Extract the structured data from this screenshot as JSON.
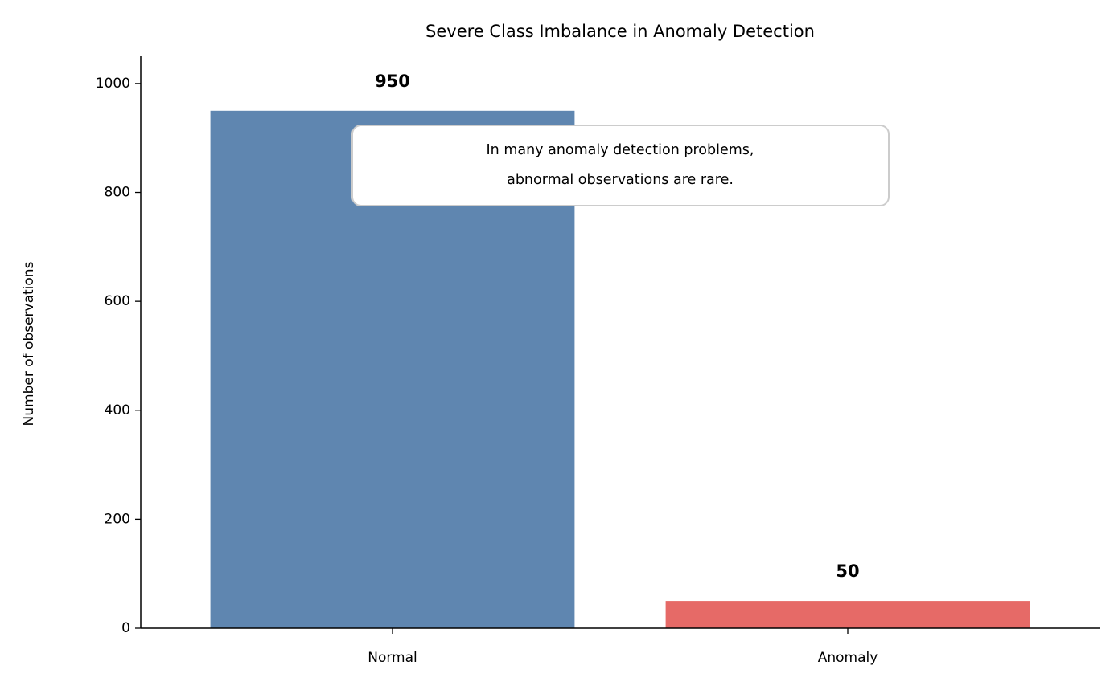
{
  "chart_data": {
    "type": "bar",
    "title": "Severe Class Imbalance in Anomaly Detection",
    "y_label": "Number of observations",
    "categories": [
      "Normal",
      "Anomaly"
    ],
    "values": [
      950,
      50
    ],
    "colors": [
      "#5f86b0",
      "#e66a67"
    ],
    "ylim": [
      0,
      1050
    ],
    "yticks": [
      0,
      200,
      400,
      600,
      800,
      1000
    ],
    "grid": false,
    "annotation": [
      "In many anomaly detection problems,",
      "abnormal observations are rare."
    ]
  }
}
